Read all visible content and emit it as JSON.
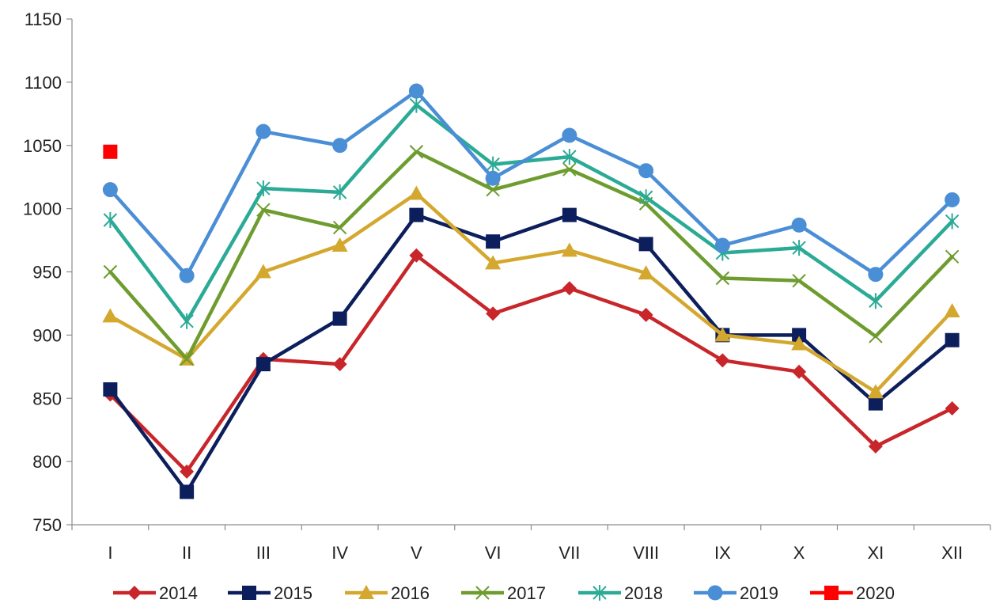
{
  "chart_data": {
    "type": "line",
    "title": "",
    "xlabel": "",
    "ylabel": "",
    "categories": [
      "I",
      "II",
      "III",
      "IV",
      "V",
      "VI",
      "VII",
      "VIII",
      "IX",
      "X",
      "XI",
      "XII"
    ],
    "ylim": [
      750,
      1150
    ],
    "yticks": [
      750,
      800,
      850,
      900,
      950,
      1000,
      1050,
      1100,
      1150
    ],
    "grid": false,
    "legend_position": "bottom",
    "series": [
      {
        "name": "2014",
        "color": "#c8262a",
        "marker": "diamond",
        "values": [
          853,
          792,
          881,
          877,
          963,
          917,
          937,
          916,
          880,
          871,
          812,
          842
        ]
      },
      {
        "name": "2015",
        "color": "#0c1f5c",
        "marker": "square",
        "values": [
          857,
          776,
          877,
          913,
          995,
          974,
          995,
          972,
          900,
          900,
          846,
          896
        ]
      },
      {
        "name": "2016",
        "color": "#d4a82f",
        "marker": "triangle",
        "values": [
          915,
          881,
          950,
          971,
          1012,
          957,
          967,
          949,
          900,
          893,
          855,
          919
        ]
      },
      {
        "name": "2017",
        "color": "#6e9c2f",
        "marker": "x",
        "values": [
          950,
          881,
          999,
          985,
          1045,
          1015,
          1031,
          1004,
          945,
          943,
          899,
          962
        ]
      },
      {
        "name": "2018",
        "color": "#2baa96",
        "marker": "asterisk",
        "values": [
          991,
          911,
          1016,
          1013,
          1082,
          1035,
          1041,
          1009,
          965,
          969,
          927,
          990
        ]
      },
      {
        "name": "2019",
        "color": "#4a8ed6",
        "marker": "circle",
        "values": [
          1015,
          947,
          1061,
          1050,
          1093,
          1024,
          1058,
          1030,
          971,
          987,
          948,
          1007
        ]
      },
      {
        "name": "2020",
        "color": "#ff0000",
        "marker": "square",
        "values": [
          1045,
          null,
          null,
          null,
          null,
          null,
          null,
          null,
          null,
          null,
          null,
          null
        ]
      }
    ]
  }
}
